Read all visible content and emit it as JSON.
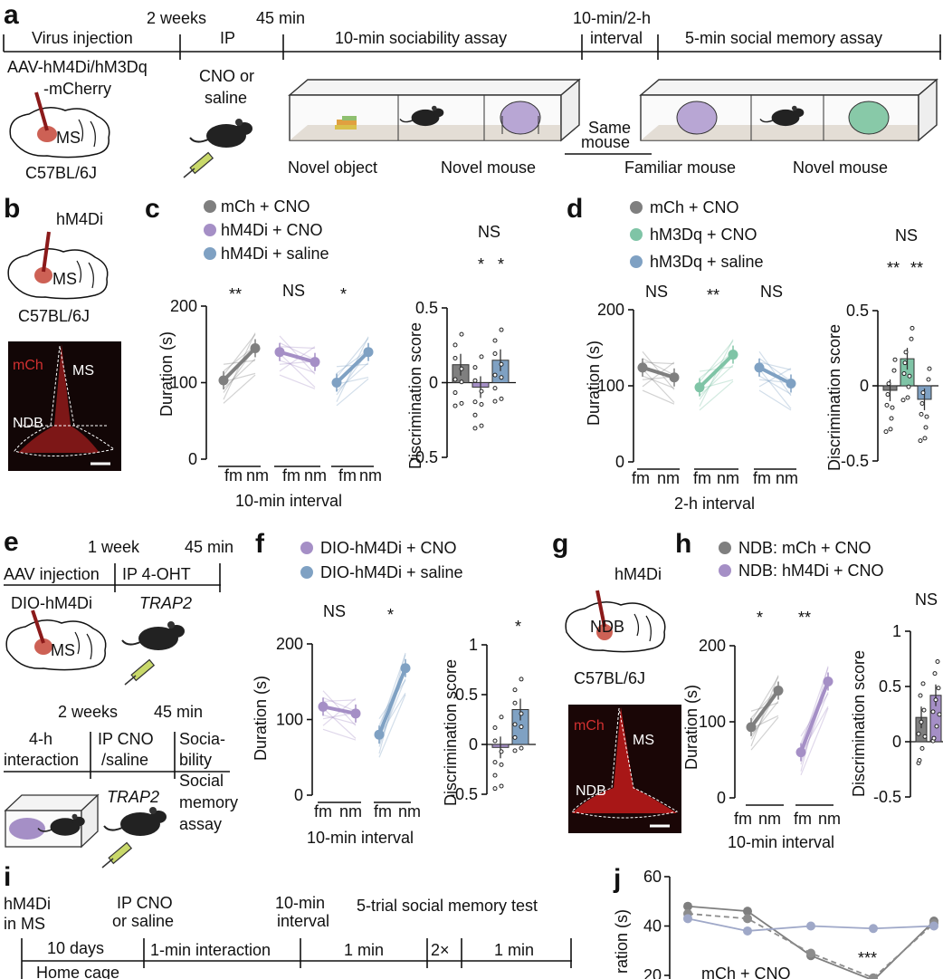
{
  "panel_letters": {
    "a": "a",
    "b": "b",
    "c": "c",
    "d": "d",
    "e": "e",
    "f": "f",
    "g": "g",
    "h": "h",
    "i": "i",
    "j": "j"
  },
  "colors": {
    "grey": "#7f7f7f",
    "purple": "#a58fc6",
    "blue": "#7fa1c3",
    "green": "#7fc4a6",
    "brain_red": "#c0392b",
    "cage_floor": "#d8d0c4"
  },
  "panel_a": {
    "timeline": [
      "Virus injection",
      "IP",
      "10-min sociability assay",
      "interval",
      "5-min social memory assay"
    ],
    "times": [
      "2 weeks",
      "45 min",
      "10-min/2-h"
    ],
    "virus": [
      "AAV-hM4Di/hM3Dq",
      "-mCherry"
    ],
    "cno": [
      "CNO or",
      "saline"
    ],
    "brain_region": "MS",
    "strain": "C57BL/6J",
    "same_mouse": [
      "Same",
      "mouse"
    ],
    "chamber_labels": [
      "Novel object",
      "Novel mouse",
      "Familiar mouse",
      "Novel mouse"
    ]
  },
  "panel_b": {
    "virus": "hM4Di",
    "region": "MS",
    "strain": "C57BL/6J",
    "mch": "mCh",
    "ms": "MS",
    "ndb": "NDB"
  },
  "panel_c": {
    "legend": [
      "mCh + CNO",
      "hM4Di + CNO",
      "hM4Di + saline"
    ],
    "sig_pairs": [
      "**",
      "NS",
      "*"
    ],
    "ylabel": "Duration (s)",
    "xticks": [
      "fm",
      "nm"
    ],
    "xlabel": "10-min interval",
    "disc_ylabel": "Discrimination score",
    "disc_sig": [
      "NS",
      "*",
      "*"
    ]
  },
  "panel_d": {
    "legend": [
      "mCh + CNO",
      "hM3Dq + CNO",
      "hM3Dq + saline"
    ],
    "sig_pairs": [
      "NS",
      "**",
      "NS"
    ],
    "ylabel": "Duration (s)",
    "xticks": [
      "fm",
      "nm"
    ],
    "xlabel": "2-h interval",
    "disc_ylabel": "Discrimination score",
    "disc_sig": [
      "NS",
      "**",
      "**"
    ]
  },
  "panel_e": {
    "times1": [
      "1 week",
      "45 min"
    ],
    "steps1": [
      "AAV injection",
      "IP 4-OHT"
    ],
    "virus": "DIO-hM4Di",
    "trap": "TRAP2",
    "region": "MS",
    "times2": [
      "2 weeks",
      "45 min"
    ],
    "steps2": [
      "4-h",
      "interaction",
      "IP CNO",
      "/saline",
      "Socia-",
      "bility",
      "Social",
      "memory",
      "assay"
    ],
    "trap2": "TRAP2"
  },
  "panel_f": {
    "legend": [
      "DIO-hM4Di + CNO",
      "DIO-hM4Di + saline"
    ],
    "sig_pairs": [
      "NS",
      "*"
    ],
    "ylabel": "Duration (s)",
    "xticks": [
      "fm",
      "nm"
    ],
    "xlabel": "10-min interval",
    "disc_ylabel": "Discrimination score",
    "disc_sig": "*"
  },
  "panel_g": {
    "virus": "hM4Di",
    "region": "NDB",
    "strain": "C57BL/6J",
    "mch": "mCh",
    "ms": "MS",
    "ndb": "NDB"
  },
  "panel_h": {
    "legend": [
      "NDB: mCh + CNO",
      "NDB: hM4Di + CNO"
    ],
    "sig_pairs": [
      "*",
      "**"
    ],
    "ylabel": "Duration (s)",
    "xticks": [
      "fm",
      "nm"
    ],
    "xlabel": "10-min interval",
    "disc_ylabel": "Discrimination score",
    "disc_sig": "NS"
  },
  "panel_i": {
    "labels": [
      "hM4Di",
      "in MS",
      "IP CNO",
      "or saline",
      "10-min",
      "interval",
      "5-trial social memory test"
    ],
    "steps": [
      "10 days",
      "1-min interaction",
      "1 min",
      "2×",
      "1 min"
    ],
    "home": "Home cage"
  },
  "panel_j": {
    "ylabel": "ration (s)",
    "legend": "mCh + CNO",
    "sig": "***"
  },
  "chart_data": [
    {
      "type": "line",
      "panel": "c",
      "ylabel": "Duration (s)",
      "ylim": [
        0,
        200
      ],
      "categories": [
        "fm",
        "nm"
      ],
      "series": [
        {
          "name": "mCh + CNO",
          "values": [
            103,
            145
          ]
        },
        {
          "name": "hM4Di + CNO",
          "values": [
            140,
            127
          ]
        },
        {
          "name": "hM4Di + saline",
          "values": [
            100,
            140
          ]
        }
      ]
    },
    {
      "type": "bar",
      "panel": "c",
      "ylabel": "Discrimination score",
      "ylim": [
        -0.5,
        0.5
      ],
      "series": [
        {
          "name": "mCh + CNO",
          "values": [
            0.12
          ]
        },
        {
          "name": "hM4Di + CNO",
          "values": [
            -0.03
          ]
        },
        {
          "name": "hM4Di + saline",
          "values": [
            0.15
          ]
        }
      ]
    },
    {
      "type": "line",
      "panel": "d",
      "ylabel": "Duration (s)",
      "ylim": [
        0,
        200
      ],
      "categories": [
        "fm",
        "nm"
      ],
      "series": [
        {
          "name": "mCh + CNO",
          "values": [
            124,
            111
          ]
        },
        {
          "name": "hM3Dq + CNO",
          "values": [
            98,
            141
          ]
        },
        {
          "name": "hM3Dq + saline",
          "values": [
            124,
            103
          ]
        }
      ]
    },
    {
      "type": "bar",
      "panel": "d",
      "ylabel": "Discrimination score",
      "ylim": [
        -0.5,
        0.5
      ],
      "series": [
        {
          "name": "mCh + CNO",
          "values": [
            -0.03
          ]
        },
        {
          "name": "hM3Dq + CNO",
          "values": [
            0.18
          ]
        },
        {
          "name": "hM3Dq + saline",
          "values": [
            -0.09
          ]
        }
      ]
    },
    {
      "type": "line",
      "panel": "f",
      "ylabel": "Duration (s)",
      "ylim": [
        0,
        200
      ],
      "categories": [
        "fm",
        "nm"
      ],
      "series": [
        {
          "name": "DIO-hM4Di + CNO",
          "values": [
            117,
            108
          ]
        },
        {
          "name": "DIO-hM4Di + saline",
          "values": [
            80,
            168
          ]
        }
      ]
    },
    {
      "type": "bar",
      "panel": "f",
      "ylabel": "Discrimination score",
      "ylim": [
        -0.5,
        1.0
      ],
      "series": [
        {
          "name": "DIO-hM4Di + CNO",
          "values": [
            -0.03
          ]
        },
        {
          "name": "DIO-hM4Di + saline",
          "values": [
            0.35
          ]
        }
      ]
    },
    {
      "type": "line",
      "panel": "h",
      "ylabel": "Duration (s)",
      "ylim": [
        0,
        200
      ],
      "categories": [
        "fm",
        "nm"
      ],
      "series": [
        {
          "name": "NDB: mCh + CNO",
          "values": [
            93,
            141
          ]
        },
        {
          "name": "NDB: hM4Di + CNO",
          "values": [
            60,
            153
          ]
        }
      ]
    },
    {
      "type": "bar",
      "panel": "h",
      "ylabel": "Discrimination score",
      "ylim": [
        -0.5,
        1.0
      ],
      "series": [
        {
          "name": "NDB: mCh + CNO",
          "values": [
            0.22
          ]
        },
        {
          "name": "NDB: hM4Di + CNO",
          "values": [
            0.42
          ]
        }
      ]
    },
    {
      "type": "line",
      "panel": "j",
      "ylim": [
        20,
        60
      ],
      "series": [
        {
          "name": "mCh + CNO",
          "values": [
            48,
            46,
            28,
            18,
            42
          ]
        },
        {
          "values": [
            45,
            43,
            29,
            19,
            41
          ]
        },
        {
          "values": [
            43,
            38,
            40,
            39,
            40
          ]
        }
      ]
    }
  ]
}
